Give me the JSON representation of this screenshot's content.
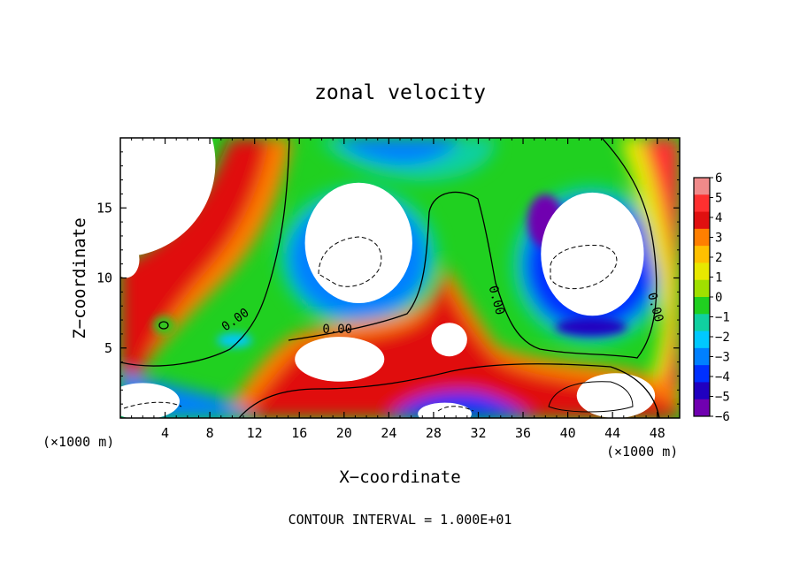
{
  "chart_data": {
    "type": "heatmap",
    "title": "zonal velocity",
    "xlabel": "X−coordinate",
    "ylabel": "Z−coordinate",
    "x_unit_left": "(×1000 m)",
    "x_unit_right": "(×1000 m)",
    "footer": "CONTOUR INTERVAL = 1.000E+01",
    "xlim": [
      0,
      50
    ],
    "ylim": [
      0,
      20
    ],
    "x_ticks": [
      4,
      8,
      12,
      16,
      20,
      24,
      28,
      32,
      36,
      40,
      44,
      48
    ],
    "y_ticks": [
      5,
      10,
      15
    ],
    "colorbar": {
      "min": -6,
      "max": 6,
      "ticks": [
        "6",
        "5",
        "4",
        "3",
        "2",
        "1",
        "0",
        "−1",
        "−2",
        "−3",
        "−4",
        "−5",
        "−6"
      ],
      "colors": [
        "#f08a8a",
        "#ff3030",
        "#e01010",
        "#ff7f00",
        "#ffc000",
        "#e8e800",
        "#a0e000",
        "#20d020",
        "#10d0a0",
        "#00c8ff",
        "#0080ff",
        "#0030ff",
        "#2000c0",
        "#7000b0"
      ]
    },
    "contour_labels": [
      {
        "text": "0.00",
        "x": 10.3,
        "z": 7.0,
        "rot": -35
      },
      {
        "text": "0.00",
        "x": 19.4,
        "z": 6.3,
        "rot": 0
      },
      {
        "text": "0.00",
        "x": 33.6,
        "z": 8.4,
        "rot": 75
      },
      {
        "text": "0.00",
        "x": 47.8,
        "z": 7.9,
        "rot": 75
      }
    ],
    "out_of_range_regions": [
      {
        "x": 0,
        "z": 18.2,
        "rx": 8.5,
        "rz": 6.7
      },
      {
        "x": 0.5,
        "z": 11.3,
        "rx": 1.2,
        "rz": 1.3
      },
      {
        "x": 21.3,
        "z": 12.5,
        "rx": 4.8,
        "rz": 4.3
      },
      {
        "x": 19.6,
        "z": 4.2,
        "rx": 4.0,
        "rz": 1.6
      },
      {
        "x": 29.4,
        "z": 5.6,
        "rx": 1.6,
        "rz": 1.2
      },
      {
        "x": 42.2,
        "z": 11.7,
        "rx": 4.6,
        "rz": 4.4
      },
      {
        "x": 44.3,
        "z": 1.6,
        "rx": 3.5,
        "rz": 1.6
      },
      {
        "x": 2.0,
        "z": 1.2,
        "rx": 3.3,
        "rz": 1.3
      },
      {
        "x": 29.0,
        "z": 0.3,
        "rx": 2.4,
        "rz": 0.8
      }
    ]
  }
}
